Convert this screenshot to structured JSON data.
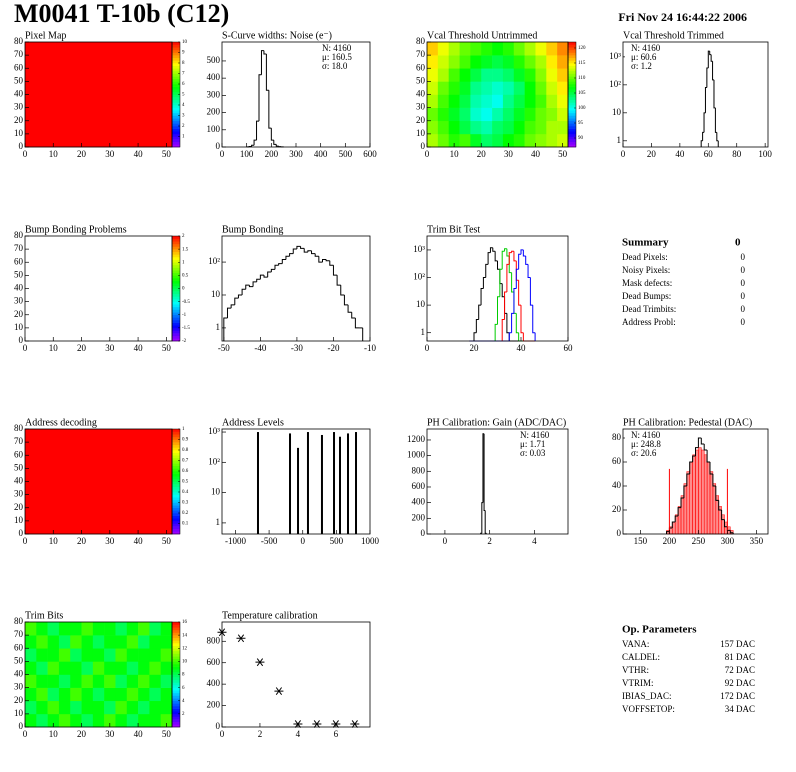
{
  "header": {
    "title": "M0041 T-10b (C12)",
    "date": "Fri Nov 24 16:44:22 2006"
  },
  "summary": {
    "title": "Summary",
    "total": 0,
    "rows": [
      {
        "label": "Dead Pixels:",
        "value": 0
      },
      {
        "label": "Noisy Pixels:",
        "value": 0
      },
      {
        "label": "Mask defects:",
        "value": 0
      },
      {
        "label": "Dead Bumps:",
        "value": 0
      },
      {
        "label": "Dead Trimbits:",
        "value": 0
      },
      {
        "label": "Address Probl:",
        "value": 0
      }
    ]
  },
  "op_parameters": {
    "title": "Op. Parameters",
    "rows": [
      {
        "label": "VANA:",
        "value": "157 DAC"
      },
      {
        "label": "CALDEL:",
        "value": "81 DAC"
      },
      {
        "label": "VTHR:",
        "value": "72 DAC"
      },
      {
        "label": "VTRIM:",
        "value": "92 DAC"
      },
      {
        "label": "IBIAS_DAC:",
        "value": "172 DAC"
      },
      {
        "label": "VOFFSETOP:",
        "value": "34 DAC"
      }
    ]
  },
  "chart_data": [
    {
      "type": "heatmap",
      "title": "Pixel Map",
      "xlim": [
        0,
        52
      ],
      "xticks": [
        0,
        10,
        20,
        30,
        40,
        50
      ],
      "ylim": [
        0,
        80
      ],
      "yticks": [
        0,
        10,
        20,
        30,
        40,
        50,
        60,
        70,
        80
      ],
      "zlim": [
        0,
        10
      ],
      "zticks": [
        1,
        2,
        3,
        4,
        5,
        6,
        7,
        8,
        9,
        10
      ],
      "z": [
        [
          10
        ]
      ]
    },
    {
      "type": "histogram",
      "title": "S-Curve widths: Noise (e⁻)",
      "xlim": [
        0,
        600
      ],
      "xticks": [
        0,
        100,
        200,
        300,
        400,
        500,
        600
      ],
      "ylim": [
        0,
        610
      ],
      "yticks": [
        0,
        100,
        200,
        300,
        400,
        500
      ],
      "bins": [
        100,
        110,
        120,
        130,
        140,
        150,
        160,
        170,
        180,
        190,
        200,
        210,
        220,
        230,
        240,
        250
      ],
      "series": [
        {
          "color": "#000000",
          "values": [
            1,
            3,
            10,
            40,
            150,
            420,
            560,
            540,
            330,
            110,
            40,
            15,
            5,
            2,
            1
          ]
        }
      ],
      "stats": [
        "N: 4160",
        "μ: 160.5",
        "σ: 18.0"
      ],
      "stats_corner": "right"
    },
    {
      "type": "heatmap",
      "title": "Vcal Threshold Untrimmed",
      "xlim": [
        0,
        52
      ],
      "xticks": [
        0,
        10,
        20,
        30,
        40,
        50
      ],
      "ylim": [
        0,
        80
      ],
      "yticks": [
        0,
        10,
        20,
        30,
        40,
        50,
        60,
        70,
        80
      ],
      "zlim": [
        87,
        122
      ],
      "zticks": [
        90,
        95,
        100,
        105,
        110,
        115,
        120
      ],
      "z": [
        [
          112,
          110,
          108,
          109,
          106,
          104,
          105,
          107,
          108,
          110,
          111,
          112,
          113
        ],
        [
          111,
          109,
          107,
          105,
          103,
          102,
          104,
          105,
          107,
          109,
          110,
          112,
          112
        ],
        [
          110,
          108,
          106,
          104,
          101,
          100,
          102,
          104,
          106,
          108,
          110,
          111,
          113
        ],
        [
          112,
          109,
          107,
          105,
          102,
          101,
          100,
          103,
          105,
          107,
          109,
          112,
          114
        ],
        [
          113,
          110,
          108,
          106,
          103,
          102,
          101,
          102,
          104,
          107,
          110,
          113,
          115
        ],
        [
          114,
          112,
          109,
          107,
          105,
          103,
          103,
          104,
          106,
          108,
          111,
          114,
          116
        ],
        [
          115,
          113,
          111,
          109,
          107,
          106,
          105,
          106,
          108,
          110,
          112,
          115,
          117
        ],
        [
          116,
          114,
          112,
          110,
          109,
          108,
          107,
          108,
          110,
          112,
          114,
          116,
          118
        ]
      ]
    },
    {
      "type": "histogram",
      "title": "Vcal Threshold Trimmed",
      "logy": true,
      "xlim": [
        0,
        102
      ],
      "xticks": [
        0,
        20,
        40,
        60,
        80,
        100
      ],
      "ylim": [
        0.6,
        3400
      ],
      "yticks": [
        1,
        10,
        {
          "value": 100,
          "label": "10²"
        },
        {
          "value": 1000,
          "label": "10³"
        }
      ],
      "bins": [
        55,
        56,
        57,
        58,
        59,
        60,
        61,
        62,
        63,
        64,
        65,
        66,
        67
      ],
      "series": [
        {
          "color": "#000000",
          "values": [
            1,
            2,
            10,
            80,
            400,
            1600,
            1200,
            700,
            150,
            15,
            2,
            1
          ]
        }
      ],
      "stats": [
        "N: 4160",
        "μ: 60.6",
        "σ:  1.2"
      ],
      "stats_corner": "left"
    },
    {
      "type": "heatmap",
      "title": "Bump Bonding Problems",
      "xlim": [
        0,
        52
      ],
      "xticks": [
        0,
        10,
        20,
        30,
        40,
        50
      ],
      "ylim": [
        0,
        80
      ],
      "yticks": [
        0,
        10,
        20,
        30,
        40,
        50,
        60,
        70,
        80
      ],
      "zlim": [
        -2,
        2
      ],
      "zticks": [
        -2,
        -1.5,
        -1,
        -0.5,
        0,
        0.5,
        1,
        1.5,
        2
      ],
      "z": []
    },
    {
      "type": "histogram",
      "title": "Bump Bonding",
      "logy": true,
      "xlim": [
        -50.5,
        -10
      ],
      "xticks": [
        -50,
        -40,
        -30,
        -20,
        -10
      ],
      "ylim": [
        0.4,
        620
      ],
      "yticks": [
        1,
        10,
        {
          "value": 100,
          "label": "10²"
        }
      ],
      "bins": [
        -50,
        -49,
        -48,
        -47,
        -46,
        -45,
        -44,
        -43,
        -42,
        -41,
        -40,
        -39,
        -38,
        -37,
        -36,
        -35,
        -34,
        -33,
        -32,
        -31,
        -30,
        -29,
        -28,
        -27,
        -26,
        -25,
        -24,
        -23,
        -22,
        -21,
        -20,
        -19,
        -18,
        -17,
        -16,
        -15,
        -14,
        -13,
        -12
      ],
      "series": [
        {
          "color": "#000000",
          "values": [
            2,
            4,
            5,
            8,
            10,
            15,
            20,
            18,
            25,
            30,
            40,
            35,
            50,
            60,
            80,
            90,
            120,
            150,
            180,
            250,
            300,
            260,
            200,
            220,
            180,
            150,
            100,
            120,
            110,
            80,
            40,
            20,
            10,
            5,
            3,
            2,
            1,
            1
          ]
        }
      ]
    },
    {
      "type": "histogram",
      "title": "Trim Bit Test",
      "logy": true,
      "xlim": [
        0,
        60
      ],
      "xticks": [
        0,
        20,
        40,
        60
      ],
      "ylim": [
        0.5,
        3200
      ],
      "yticks": [
        1,
        10,
        {
          "value": 100,
          "label": "10²"
        },
        {
          "value": 1000,
          "label": "10³"
        }
      ],
      "bins": [
        18,
        19,
        20,
        21,
        22,
        23,
        24,
        25,
        26,
        27,
        28,
        29,
        30,
        31,
        32,
        33,
        34,
        35,
        36,
        37,
        38,
        39,
        40,
        41,
        42,
        43,
        44,
        45,
        46
      ],
      "series": [
        {
          "color": "#000000",
          "values": [
            0,
            0,
            1,
            3,
            10,
            40,
            100,
            300,
            800,
            1200,
            900,
            400,
            200,
            60,
            20,
            5,
            1,
            0,
            0,
            0,
            0,
            0,
            0,
            0,
            0,
            0,
            0,
            0
          ]
        },
        {
          "color": "#00cc00",
          "values": [
            0,
            0,
            0,
            0,
            0,
            0,
            0,
            0,
            0,
            0,
            0,
            2,
            20,
            200,
            900,
            1100,
            600,
            150,
            30,
            5,
            1,
            0,
            0,
            0,
            0,
            0,
            0,
            0
          ]
        },
        {
          "color": "#ff0000",
          "values": [
            0,
            0,
            0,
            0,
            0,
            0,
            0,
            0,
            0,
            0,
            0,
            0,
            0,
            0,
            3,
            30,
            300,
            800,
            900,
            400,
            80,
            10,
            1,
            0,
            0,
            0,
            0,
            0
          ]
        },
        {
          "color": "#0000ff",
          "values": [
            0,
            0,
            0,
            0,
            0,
            0,
            0,
            0,
            0,
            0,
            0,
            0,
            0,
            0,
            0,
            0,
            0,
            1,
            5,
            40,
            200,
            700,
            1000,
            600,
            300,
            100,
            10,
            1
          ]
        }
      ]
    },
    {
      "type": "heatmap",
      "title": "Address decoding",
      "xlim": [
        0,
        52
      ],
      "xticks": [
        0,
        10,
        20,
        30,
        40,
        50
      ],
      "ylim": [
        0,
        80
      ],
      "yticks": [
        0,
        10,
        20,
        30,
        40,
        50,
        60,
        70,
        80
      ],
      "zlim": [
        0,
        1
      ],
      "zticks": [
        0.1,
        0.2,
        0.3,
        0.4,
        0.5,
        0.6,
        0.7,
        0.8,
        0.9,
        1
      ],
      "z": [
        [
          1
        ]
      ]
    },
    {
      "type": "spikes",
      "title": "Address Levels",
      "logy": true,
      "xlim": [
        -1200,
        1000
      ],
      "xticks": [
        -1000,
        -500,
        0,
        500,
        1000
      ],
      "ylim": [
        0.43,
        1260
      ],
      "yticks": [
        1,
        10,
        {
          "value": 100,
          "label": "10²"
        },
        {
          "value": 1000,
          "label": "10³"
        }
      ],
      "x": [
        -665,
        -189,
        -70,
        78,
        286,
        465,
        554,
        673,
        792
      ],
      "values": [
        1000,
        900,
        300,
        1000,
        800,
        1000,
        700,
        900,
        1000
      ],
      "color": "#000000"
    },
    {
      "type": "histogram",
      "title": "PH Calibration: Gain (ADC/DAC)",
      "xlim": [
        -0.8,
        5.5
      ],
      "xticks": [
        0,
        2,
        4
      ],
      "ylim": [
        0,
        1340
      ],
      "yticks": [
        0,
        200,
        400,
        600,
        800,
        1000,
        1200
      ],
      "bins": [
        1.6,
        1.65,
        1.7,
        1.75,
        1.8,
        1.85
      ],
      "series": [
        {
          "color": "#000000",
          "values": [
            10,
            400,
            1280,
            300,
            10
          ]
        }
      ],
      "stats": [
        "N: 4160",
        "μ: 1.71",
        "σ: 0.03"
      ],
      "stats_corner": "right"
    },
    {
      "type": "histogram",
      "title": "PH Calibration: Pedestal (DAC)",
      "xlim": [
        120,
        370
      ],
      "xticks": [
        150,
        200,
        250,
        300,
        350
      ],
      "ylim": [
        0,
        87.5
      ],
      "yticks": [
        0,
        20,
        40,
        60,
        80
      ],
      "bins": [
        195,
        200,
        205,
        210,
        215,
        220,
        225,
        230,
        235,
        240,
        245,
        250,
        255,
        260,
        265,
        270,
        275,
        280,
        285,
        290,
        295,
        300,
        305,
        310
      ],
      "series": [
        {
          "color": "#ff0000",
          "fill": true,
          "values": [
            3,
            6,
            10,
            16,
            23,
            32,
            42,
            52,
            60,
            66,
            70,
            72,
            70,
            66,
            60,
            52,
            42,
            32,
            23,
            16,
            10,
            6,
            3
          ]
        },
        {
          "color": "#000000",
          "values": [
            2,
            5,
            10,
            15,
            22,
            30,
            40,
            50,
            60,
            65,
            72,
            80,
            75,
            70,
            60,
            50,
            40,
            28,
            20,
            12,
            6,
            3,
            1
          ]
        }
      ],
      "fit_range": [
        200,
        300
      ],
      "fit_color": "#ff0000",
      "stats": [
        "N: 4160",
        "μ: 248.8",
        "σ: 20.6"
      ],
      "stats_colors": [
        "#000000",
        "#ff0000",
        "#ff0000"
      ],
      "stats_corner": "left"
    },
    {
      "type": "heatmap",
      "title": "Trim Bits",
      "xlim": [
        0,
        52
      ],
      "xticks": [
        0,
        10,
        20,
        30,
        40,
        50
      ],
      "ylim": [
        0,
        80
      ],
      "yticks": [
        0,
        10,
        20,
        30,
        40,
        50,
        60,
        70,
        80
      ],
      "zlim": [
        0,
        16
      ],
      "zticks": [
        2,
        4,
        6,
        8,
        10,
        12,
        14,
        16
      ],
      "z": [
        [
          9,
          8,
          9,
          10,
          9,
          8,
          9,
          10,
          9,
          8,
          9,
          9,
          10
        ],
        [
          8,
          9,
          10,
          9,
          8,
          9,
          9,
          8,
          10,
          9,
          8,
          9,
          9
        ],
        [
          9,
          10,
          8,
          9,
          10,
          9,
          8,
          9,
          9,
          10,
          9,
          8,
          9
        ],
        [
          10,
          9,
          9,
          8,
          9,
          10,
          9,
          10,
          8,
          9,
          10,
          9,
          8
        ],
        [
          9,
          8,
          10,
          9,
          9,
          8,
          10,
          9,
          9,
          8,
          9,
          10,
          9
        ],
        [
          8,
          9,
          9,
          10,
          8,
          9,
          9,
          8,
          10,
          9,
          9,
          9,
          10
        ],
        [
          9,
          10,
          9,
          8,
          10,
          9,
          8,
          9,
          9,
          10,
          8,
          9,
          9
        ],
        [
          10,
          9,
          8,
          9,
          9,
          10,
          9,
          9,
          8,
          9,
          10,
          8,
          9
        ]
      ]
    },
    {
      "type": "scatter",
      "title": "Temperature calibration",
      "xlim": [
        0,
        7.8
      ],
      "xticks": [
        0,
        2,
        4,
        6
      ],
      "ylim": [
        0,
        980
      ],
      "yticks": [
        0,
        200,
        400,
        600,
        800
      ],
      "x": [
        0,
        1,
        2,
        3,
        4,
        5,
        6,
        7
      ],
      "values": [
        884,
        828,
        605,
        335,
        28,
        28,
        28,
        28
      ],
      "color": "#000000"
    }
  ]
}
